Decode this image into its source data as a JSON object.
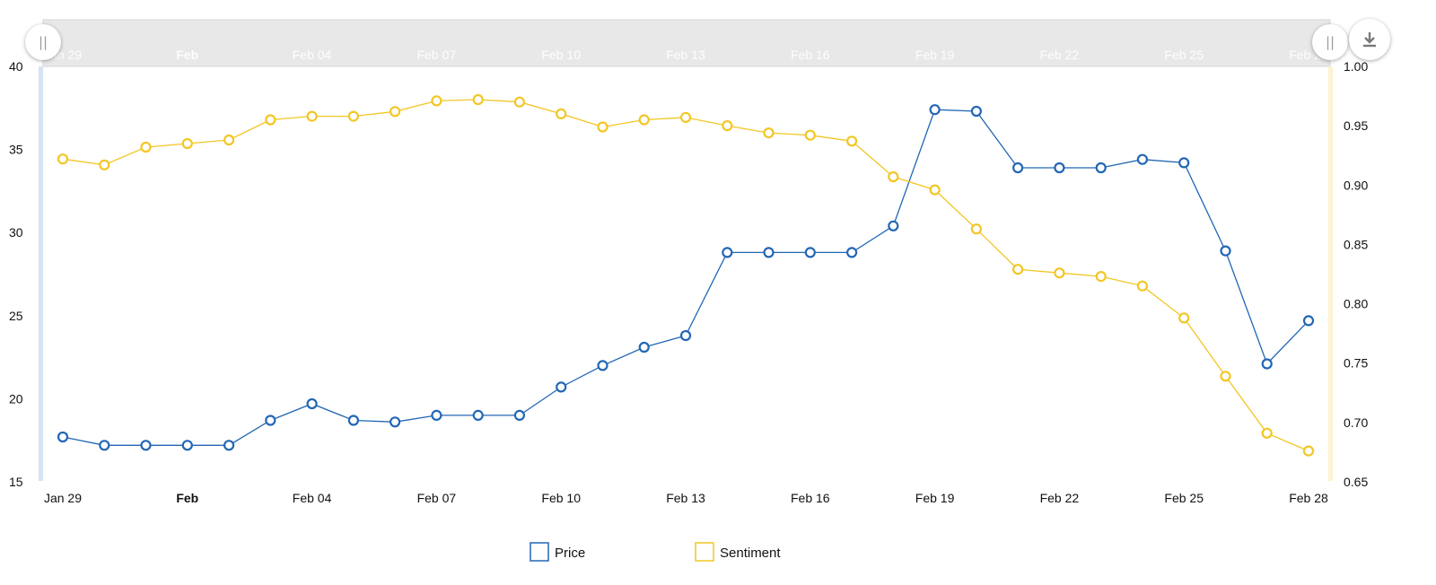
{
  "chart_data": {
    "type": "line",
    "x": [
      "Jan 29",
      "Jan 30",
      "Jan 31",
      "Feb 01",
      "Feb 02",
      "Feb 03",
      "Feb 04",
      "Feb 05",
      "Feb 06",
      "Feb 07",
      "Feb 08",
      "Feb 09",
      "Feb 10",
      "Feb 11",
      "Feb 12",
      "Feb 13",
      "Feb 14",
      "Feb 15",
      "Feb 16",
      "Feb 17",
      "Feb 18",
      "Feb 19",
      "Feb 20",
      "Feb 21",
      "Feb 22",
      "Feb 23",
      "Feb 24",
      "Feb 25",
      "Feb 26",
      "Feb 27",
      "Feb 28"
    ],
    "x_ticks": [
      {
        "label": "Jan 29",
        "bold": false,
        "index": 0
      },
      {
        "label": "Feb",
        "bold": true,
        "index": 3
      },
      {
        "label": "Feb 04",
        "bold": false,
        "index": 6
      },
      {
        "label": "Feb 07",
        "bold": false,
        "index": 9
      },
      {
        "label": "Feb 10",
        "bold": false,
        "index": 12
      },
      {
        "label": "Feb 13",
        "bold": false,
        "index": 15
      },
      {
        "label": "Feb 16",
        "bold": false,
        "index": 18
      },
      {
        "label": "Feb 19",
        "bold": false,
        "index": 21
      },
      {
        "label": "Feb 22",
        "bold": false,
        "index": 24
      },
      {
        "label": "Feb 25",
        "bold": false,
        "index": 27
      },
      {
        "label": "Feb 28",
        "bold": false,
        "index": 30
      }
    ],
    "navigator_ticks": [
      {
        "label": "Jan 29",
        "bold": false,
        "index": 0
      },
      {
        "label": "Feb",
        "bold": true,
        "index": 3
      },
      {
        "label": "Feb 04",
        "bold": false,
        "index": 6
      },
      {
        "label": "Feb 07",
        "bold": false,
        "index": 9
      },
      {
        "label": "Feb 10",
        "bold": false,
        "index": 12
      },
      {
        "label": "Feb 13",
        "bold": false,
        "index": 15
      },
      {
        "label": "Feb 16",
        "bold": false,
        "index": 18
      },
      {
        "label": "Feb 19",
        "bold": false,
        "index": 21
      },
      {
        "label": "Feb 22",
        "bold": false,
        "index": 24
      },
      {
        "label": "Feb 25",
        "bold": false,
        "index": 27
      },
      {
        "label": "Feb 28",
        "bold": false,
        "index": 30
      }
    ],
    "y_left": {
      "min": 15,
      "max": 40,
      "ticks": [
        "15",
        "20",
        "25",
        "30",
        "35",
        "40"
      ]
    },
    "y_right": {
      "min": 0.65,
      "max": 1.0,
      "ticks": [
        "0.65",
        "0.70",
        "0.75",
        "0.80",
        "0.85",
        "0.90",
        "0.95",
        "1.00"
      ]
    },
    "series": [
      {
        "name": "Price",
        "axis": "left",
        "color": "#2166b5",
        "values": [
          17.7,
          17.2,
          17.2,
          17.2,
          17.2,
          18.7,
          19.7,
          18.7,
          18.6,
          19.0,
          19.0,
          19.0,
          20.7,
          22.0,
          23.1,
          23.8,
          28.8,
          28.8,
          28.8,
          28.8,
          30.4,
          37.4,
          37.3,
          33.9,
          33.9,
          33.9,
          34.4,
          34.2,
          28.9,
          22.1,
          24.7
        ]
      },
      {
        "name": "Sentiment",
        "axis": "right",
        "color": "#f2c624",
        "values": [
          0.922,
          0.917,
          0.932,
          0.935,
          0.938,
          0.955,
          0.958,
          0.958,
          0.962,
          0.971,
          0.972,
          0.97,
          0.96,
          0.949,
          0.955,
          0.957,
          0.95,
          0.944,
          0.942,
          0.937,
          0.907,
          0.896,
          0.863,
          0.829,
          0.826,
          0.823,
          0.815,
          0.788,
          0.739,
          0.691,
          0.676
        ]
      }
    ],
    "legend_position": "bottom-center",
    "grid": false
  },
  "colors": {
    "price": "#2166b5",
    "sentiment": "#f2c624",
    "navigator_bg": "#e8e8e8"
  },
  "icons": {
    "left_handle": "drag-handle-icon",
    "right_handle": "drag-handle-icon",
    "download": "download-icon"
  }
}
